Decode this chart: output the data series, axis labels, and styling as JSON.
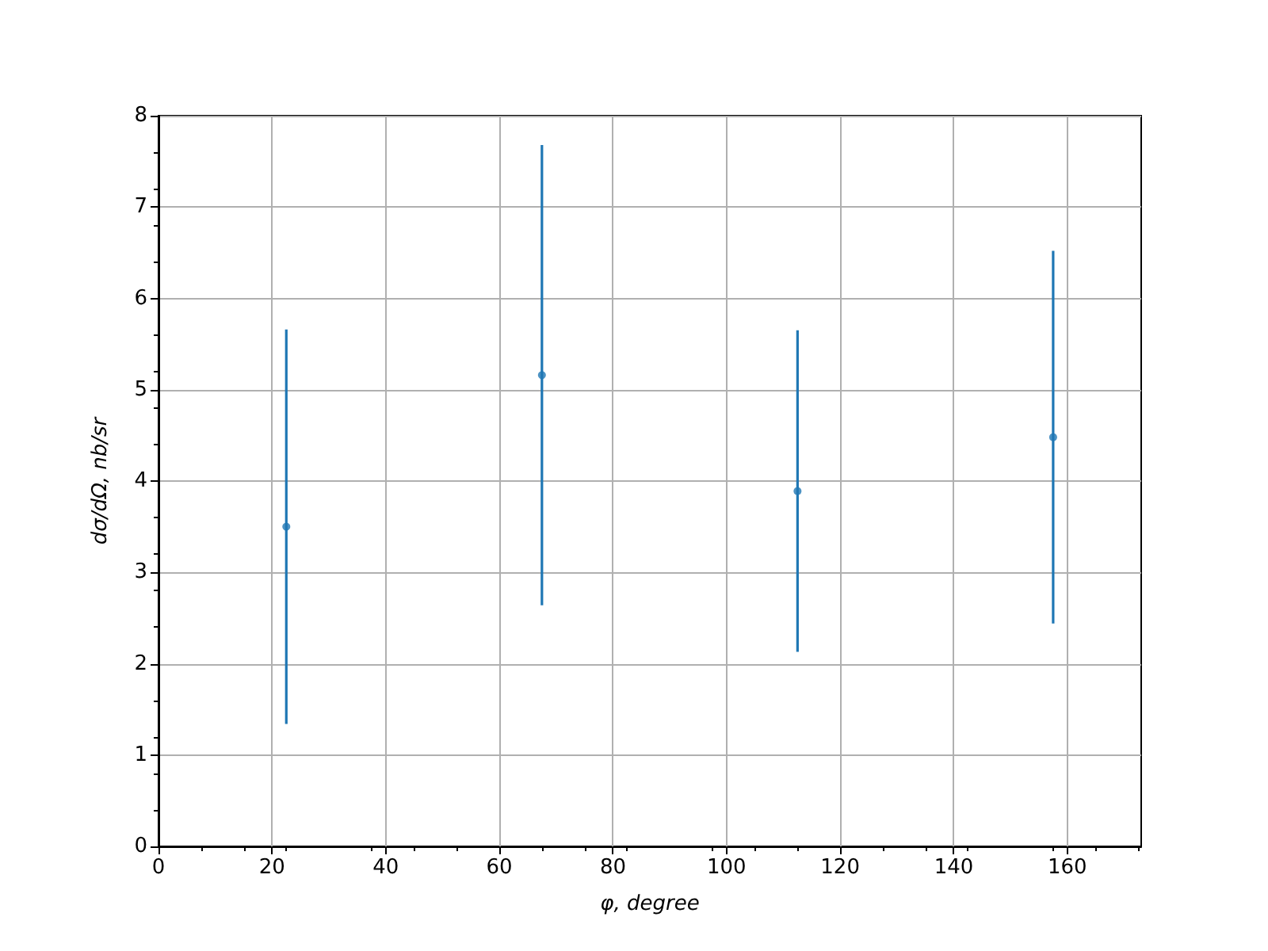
{
  "chart_data": {
    "type": "scatter",
    "xlabel": "φ, degree",
    "ylabel": "dσ/dΩ, nb/sr",
    "x": [
      22.5,
      67.5,
      112.5,
      157.5
    ],
    "values": [
      3.5,
      5.16,
      3.89,
      4.48
    ],
    "errors": [
      2.16,
      2.52,
      1.76,
      2.04
    ],
    "color": "#1f77b4",
    "marker": "circle",
    "xlim": [
      0,
      173
    ],
    "xticks": [
      0,
      20,
      40,
      60,
      80,
      100,
      120,
      140,
      160
    ],
    "ylim": [
      0,
      8
    ],
    "yticks": [
      0,
      1,
      2,
      3,
      4,
      5,
      6,
      7,
      8
    ],
    "grid": true
  }
}
